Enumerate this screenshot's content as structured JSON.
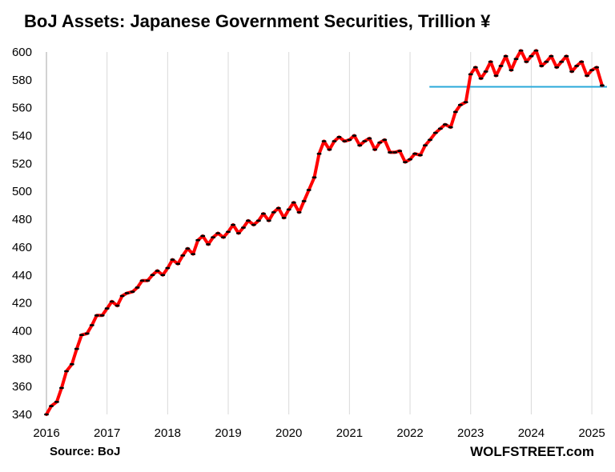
{
  "title": "BoJ Assets: Japanese Government Securities, Trillion ¥",
  "source": "Source: BoJ",
  "brand": "WOLFSTREET.com",
  "colors": {
    "line": "#ff0000",
    "marker": "#000000",
    "reference_line": "#29a9d9",
    "grid": "#d9d9d9",
    "axis": "#a6a6a6"
  },
  "chart_data": {
    "type": "line",
    "title": "BoJ Assets: Japanese Government Securities, Trillion ¥",
    "xlabel": "",
    "ylabel": "",
    "x_ticks": [
      "2016",
      "2017",
      "2018",
      "2019",
      "2020",
      "2021",
      "2022",
      "2023",
      "2024",
      "2025"
    ],
    "y_ticks": [
      "340",
      "360",
      "380",
      "400",
      "420",
      "440",
      "460",
      "480",
      "500",
      "520",
      "540",
      "560",
      "580",
      "600"
    ],
    "xlim": [
      2016.0,
      2025.25
    ],
    "ylim": [
      340,
      600
    ],
    "grid": "vertical",
    "legend": "none",
    "series": [
      {
        "x": [
          2016.0,
          2016.08,
          2016.17,
          2016.25,
          2016.33,
          2016.42,
          2016.5,
          2016.58,
          2016.67,
          2016.75,
          2016.83,
          2016.92,
          2017.0,
          2017.08,
          2017.17,
          2017.25,
          2017.33,
          2017.42,
          2017.5,
          2017.58,
          2017.67,
          2017.75,
          2017.83,
          2017.92,
          2018.0,
          2018.08,
          2018.17,
          2018.25,
          2018.33,
          2018.42,
          2018.5,
          2018.58,
          2018.67,
          2018.75,
          2018.83,
          2018.92,
          2019.0,
          2019.08,
          2019.17,
          2019.25,
          2019.33,
          2019.42,
          2019.5,
          2019.58,
          2019.67,
          2019.75,
          2019.83,
          2019.92,
          2020.0,
          2020.08,
          2020.17,
          2020.25,
          2020.33,
          2020.42,
          2020.5,
          2020.58,
          2020.67,
          2020.75,
          2020.83,
          2020.92,
          2021.0,
          2021.08,
          2021.17,
          2021.25,
          2021.33,
          2021.42,
          2021.5,
          2021.58,
          2021.67,
          2021.75,
          2021.83,
          2021.92,
          2022.0,
          2022.08,
          2022.17,
          2022.25,
          2022.33,
          2022.42,
          2022.5,
          2022.58,
          2022.67,
          2022.75,
          2022.83,
          2022.92,
          2023.0,
          2023.08,
          2023.17,
          2023.25,
          2023.33,
          2023.42,
          2023.5,
          2023.58,
          2023.67,
          2023.75,
          2023.83,
          2023.92,
          2024.0,
          2024.08,
          2024.17,
          2024.25,
          2024.33,
          2024.42,
          2024.5,
          2024.58,
          2024.67,
          2024.75,
          2024.83,
          2024.92,
          2025.0,
          2025.08,
          2025.17
        ],
        "values": [
          340,
          346,
          349,
          359,
          371,
          376,
          387,
          397,
          398,
          404,
          411,
          411,
          416,
          421,
          418,
          425,
          427,
          428,
          431,
          436,
          436,
          440,
          443,
          440,
          445,
          451,
          448,
          454,
          459,
          455,
          465,
          468,
          462,
          467,
          470,
          467,
          471,
          476,
          470,
          474,
          479,
          476,
          479,
          484,
          479,
          485,
          488,
          481,
          487,
          492,
          485,
          493,
          501,
          510,
          527,
          536,
          530,
          536,
          539,
          536,
          537,
          540,
          533,
          536,
          538,
          530,
          535,
          537,
          528,
          528,
          529,
          521,
          523,
          527,
          526,
          533,
          537,
          542,
          545,
          548,
          546,
          557,
          562,
          564,
          584,
          589,
          581,
          586,
          593,
          583,
          590,
          597,
          587,
          595,
          601,
          593,
          597,
          601,
          590,
          593,
          597,
          589,
          593,
          597,
          586,
          590,
          593,
          583,
          587,
          589,
          576
        ]
      }
    ],
    "reference_line": {
      "value": 575,
      "x_start": 2022.32,
      "x_end": 2025.25
    }
  }
}
